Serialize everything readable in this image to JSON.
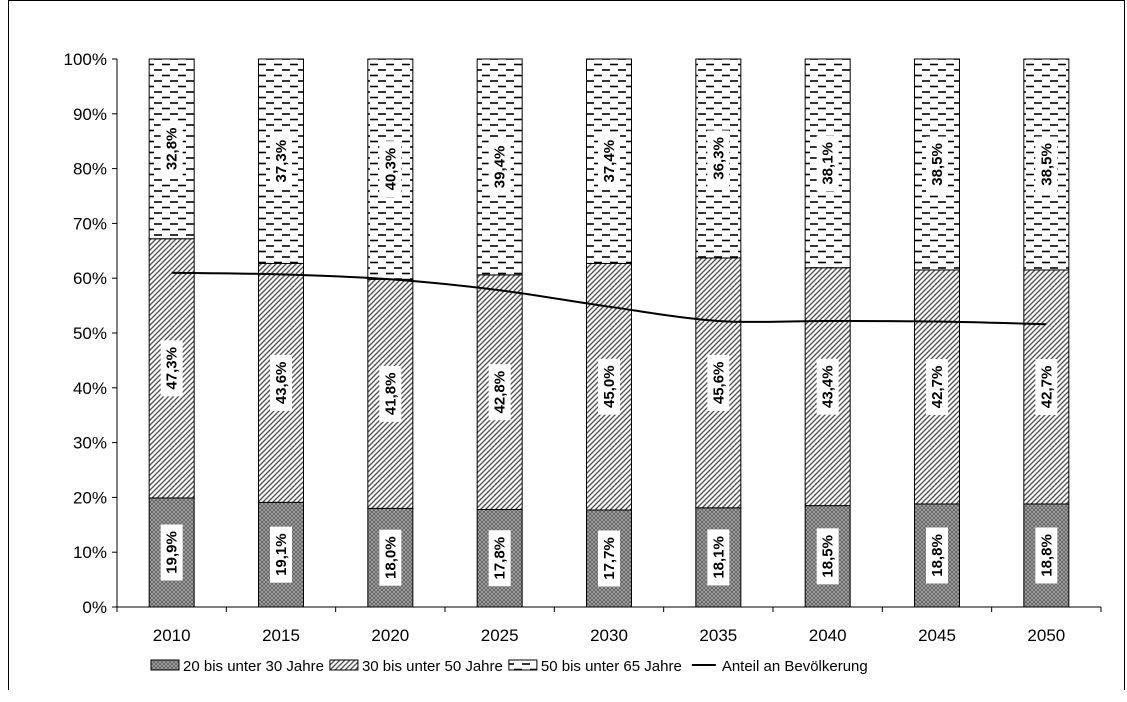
{
  "chart_data": {
    "type": "bar",
    "stacked": true,
    "categories": [
      "2010",
      "2015",
      "2020",
      "2025",
      "2030",
      "2035",
      "2040",
      "2045",
      "2050"
    ],
    "y_ticks": [
      "0%",
      "10%",
      "20%",
      "30%",
      "40%",
      "50%",
      "60%",
      "70%",
      "80%",
      "90%",
      "100%"
    ],
    "ylim": [
      0,
      100
    ],
    "series": [
      {
        "name": "20 bis unter 30 Jahre",
        "pattern": "crosshatch",
        "values": [
          19.9,
          19.1,
          18.0,
          17.8,
          17.7,
          18.1,
          18.5,
          18.8,
          18.8
        ],
        "labels": [
          "19,9%",
          "19,1%",
          "18,0%",
          "17,8%",
          "17,7%",
          "18,1%",
          "18,5%",
          "18,8%",
          "18,8%"
        ]
      },
      {
        "name": "30 bis unter 50 Jahre",
        "pattern": "diagonal",
        "values": [
          47.3,
          43.6,
          41.8,
          42.8,
          45.0,
          45.6,
          43.4,
          42.7,
          42.7
        ],
        "labels": [
          "47,3%",
          "43,6%",
          "41,8%",
          "42,8%",
          "45,0%",
          "45,6%",
          "43,4%",
          "42,7%",
          "42,7%"
        ]
      },
      {
        "name": "50 bis unter 65 Jahre",
        "pattern": "dashes",
        "values": [
          32.8,
          37.3,
          40.3,
          39.4,
          37.4,
          36.3,
          38.1,
          38.5,
          38.5
        ],
        "labels": [
          "32,8%",
          "37,3%",
          "40,3%",
          "39,4%",
          "37,4%",
          "36,3%",
          "38,1%",
          "38,5%",
          "38,5%"
        ]
      }
    ],
    "line": {
      "name": "Anteil an Bevölkerung",
      "values": [
        61.0,
        60.7,
        59.8,
        57.8,
        54.8,
        52.2,
        52.2,
        52.1,
        51.6
      ]
    },
    "legend_position": "bottom",
    "grid": false
  }
}
